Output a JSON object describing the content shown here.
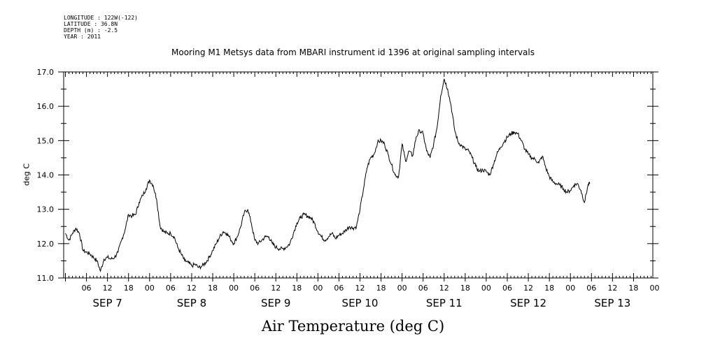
{
  "meta": {
    "longitude": "LONGITUDE : 122W(-122)",
    "latitude": "LATITUDE : 36.8N",
    "depth": "DEPTH (m) : -2.5",
    "year": "YEAR : 2011"
  },
  "chart_data": {
    "type": "line",
    "title": "Mooring M1 Metsys data from MBARI instrument id 1396 at original sampling intervals",
    "xlabel": "Air Temperature (deg C)",
    "ylabel": "deg C",
    "ylim": [
      11.0,
      17.0
    ],
    "yticks": [
      "11.0",
      "12.0",
      "13.0",
      "14.0",
      "15.0",
      "16.0",
      "17.0"
    ],
    "xlim_hours": [
      -0.5,
      167.5
    ],
    "hour_ticks": [
      "06",
      "12",
      "18",
      "00",
      "06",
      "12",
      "18",
      "00",
      "06",
      "12",
      "18",
      "00",
      "06",
      "12",
      "18",
      "00",
      "06",
      "12",
      "18",
      "00",
      "06",
      "12",
      "18",
      "00",
      "06",
      "12",
      "18",
      "00"
    ],
    "day_labels": [
      "SEP  7",
      "SEP  8",
      "SEP  9",
      "SEP 10",
      "SEP 11",
      "SEP 12",
      "SEP 13"
    ],
    "grid": false,
    "series": [
      {
        "name": "",
        "points": [
          [
            0,
            12.3
          ],
          [
            1,
            12.1
          ],
          [
            2,
            12.3
          ],
          [
            3,
            12.45
          ],
          [
            4,
            12.3
          ],
          [
            5,
            11.8
          ],
          [
            6,
            11.75
          ],
          [
            7,
            11.7
          ],
          [
            8,
            11.6
          ],
          [
            9,
            11.5
          ],
          [
            10,
            11.2
          ],
          [
            11,
            11.55
          ],
          [
            12,
            11.6
          ],
          [
            13,
            11.55
          ],
          [
            14,
            11.6
          ],
          [
            15,
            11.75
          ],
          [
            16,
            12.1
          ],
          [
            17,
            12.4
          ],
          [
            18,
            12.85
          ],
          [
            19,
            12.8
          ],
          [
            20,
            12.85
          ],
          [
            21,
            13.2
          ],
          [
            22,
            13.4
          ],
          [
            23,
            13.6
          ],
          [
            24,
            13.85
          ],
          [
            25,
            13.7
          ],
          [
            26,
            13.3
          ],
          [
            27,
            12.5
          ],
          [
            28,
            12.35
          ],
          [
            29,
            12.3
          ],
          [
            30,
            12.3
          ],
          [
            31,
            12.2
          ],
          [
            32,
            11.9
          ],
          [
            33,
            11.7
          ],
          [
            34,
            11.5
          ],
          [
            35,
            11.45
          ],
          [
            36,
            11.35
          ],
          [
            37,
            11.4
          ],
          [
            38,
            11.3
          ],
          [
            39,
            11.35
          ],
          [
            40,
            11.45
          ],
          [
            41,
            11.6
          ],
          [
            42,
            11.8
          ],
          [
            43,
            12.0
          ],
          [
            44,
            12.2
          ],
          [
            45,
            12.35
          ],
          [
            46,
            12.3
          ],
          [
            47,
            12.15
          ],
          [
            48,
            12.0
          ],
          [
            49,
            12.2
          ],
          [
            50,
            12.5
          ],
          [
            51,
            12.9
          ],
          [
            52,
            13.0
          ],
          [
            53,
            12.6
          ],
          [
            54,
            12.1
          ],
          [
            55,
            12.0
          ],
          [
            56,
            12.1
          ],
          [
            57,
            12.2
          ],
          [
            58,
            12.2
          ],
          [
            59,
            12.0
          ],
          [
            60,
            11.9
          ],
          [
            61,
            11.85
          ],
          [
            62,
            11.85
          ],
          [
            63,
            11.9
          ],
          [
            64,
            12.0
          ],
          [
            65,
            12.3
          ],
          [
            66,
            12.6
          ],
          [
            67,
            12.75
          ],
          [
            68,
            12.85
          ],
          [
            69,
            12.8
          ],
          [
            70,
            12.75
          ],
          [
            71,
            12.6
          ],
          [
            72,
            12.35
          ],
          [
            73,
            12.2
          ],
          [
            74,
            12.1
          ],
          [
            75,
            12.2
          ],
          [
            76,
            12.3
          ],
          [
            77,
            12.15
          ],
          [
            78,
            12.25
          ],
          [
            79,
            12.3
          ],
          [
            80,
            12.4
          ],
          [
            81,
            12.5
          ],
          [
            82,
            12.45
          ],
          [
            83,
            12.5
          ],
          [
            84,
            13.0
          ],
          [
            85,
            13.6
          ],
          [
            86,
            14.2
          ],
          [
            87,
            14.5
          ],
          [
            88,
            14.6
          ],
          [
            89,
            14.95
          ],
          [
            90,
            15.0
          ],
          [
            91,
            14.9
          ],
          [
            92,
            14.6
          ],
          [
            93,
            14.3
          ],
          [
            94,
            14.0
          ],
          [
            95,
            13.95
          ],
          [
            96,
            14.9
          ],
          [
            97,
            14.4
          ],
          [
            98,
            14.7
          ],
          [
            99,
            14.55
          ],
          [
            100,
            15.1
          ],
          [
            101,
            15.3
          ],
          [
            102,
            15.2
          ],
          [
            103,
            14.7
          ],
          [
            104,
            14.5
          ],
          [
            105,
            14.9
          ],
          [
            106,
            15.4
          ],
          [
            107,
            16.3
          ],
          [
            108,
            16.8
          ],
          [
            109,
            16.5
          ],
          [
            110,
            16.0
          ],
          [
            111,
            15.3
          ],
          [
            112,
            14.95
          ],
          [
            113,
            14.85
          ],
          [
            114,
            14.75
          ],
          [
            115,
            14.7
          ],
          [
            116,
            14.5
          ],
          [
            117,
            14.25
          ],
          [
            118,
            14.1
          ],
          [
            119,
            14.15
          ],
          [
            120,
            14.1
          ],
          [
            121,
            14.0
          ],
          [
            122,
            14.3
          ],
          [
            123,
            14.6
          ],
          [
            124,
            14.8
          ],
          [
            125,
            14.95
          ],
          [
            126,
            15.1
          ],
          [
            127,
            15.2
          ],
          [
            128,
            15.25
          ],
          [
            129,
            15.2
          ],
          [
            130,
            15.0
          ],
          [
            131,
            14.75
          ],
          [
            132,
            14.6
          ],
          [
            133,
            14.5
          ],
          [
            134,
            14.45
          ],
          [
            135,
            14.35
          ],
          [
            136,
            14.55
          ],
          [
            137,
            14.2
          ],
          [
            138,
            13.95
          ],
          [
            139,
            13.8
          ],
          [
            140,
            13.75
          ],
          [
            141,
            13.7
          ],
          [
            142,
            13.6
          ],
          [
            143,
            13.5
          ],
          [
            144,
            13.55
          ],
          [
            145,
            13.7
          ],
          [
            146,
            13.75
          ],
          [
            147,
            13.55
          ],
          [
            148,
            13.2
          ],
          [
            149,
            13.7
          ],
          [
            149.5,
            13.75
          ]
        ]
      }
    ]
  }
}
